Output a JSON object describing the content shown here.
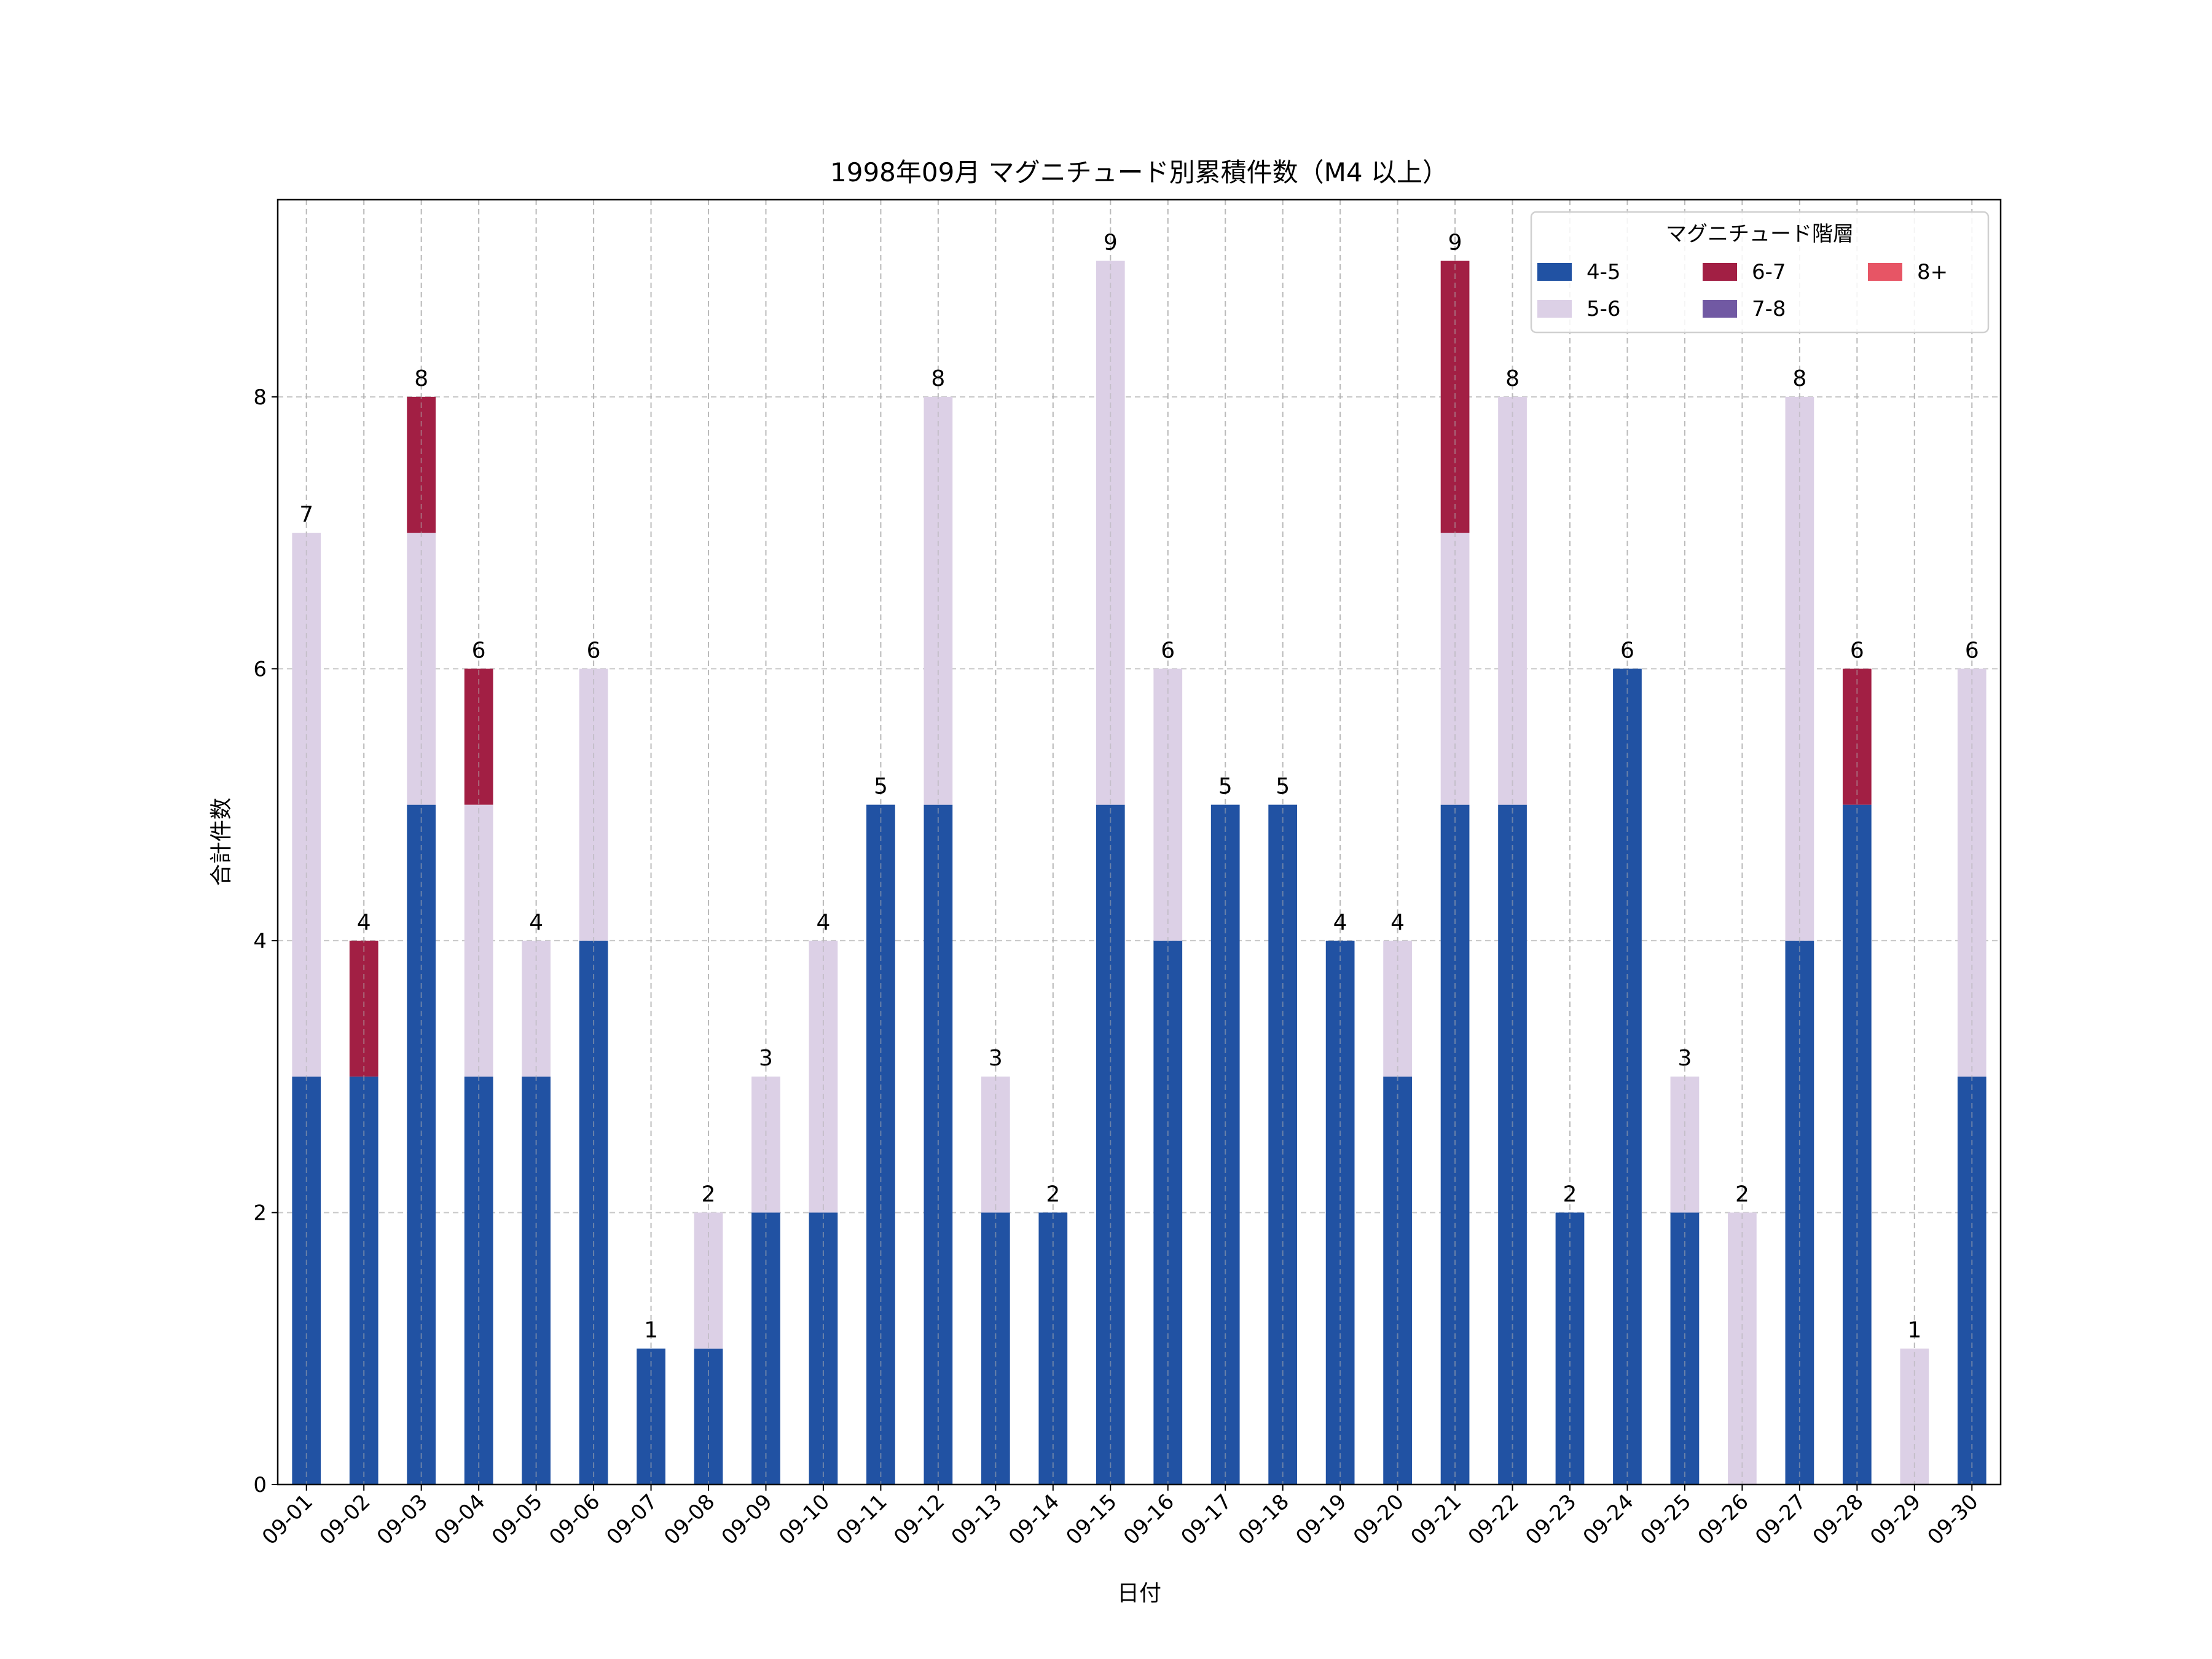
{
  "chart_data": {
    "type": "bar",
    "stacked": true,
    "title": "1998年09月 マグニチュード別累積件数（M4 以上）",
    "xlabel": "日付",
    "ylabel": "合計件数",
    "ylim": [
      0,
      9.45
    ],
    "yticks": [
      0,
      2,
      4,
      6,
      8
    ],
    "grid": true,
    "legend": {
      "title": "マグニチュード階層",
      "placement": "top-right",
      "columns": 3
    },
    "categories": [
      "09-01",
      "09-02",
      "09-03",
      "09-04",
      "09-05",
      "09-06",
      "09-07",
      "09-08",
      "09-09",
      "09-10",
      "09-11",
      "09-12",
      "09-13",
      "09-14",
      "09-15",
      "09-16",
      "09-17",
      "09-18",
      "09-19",
      "09-20",
      "09-21",
      "09-22",
      "09-23",
      "09-24",
      "09-25",
      "09-26",
      "09-27",
      "09-28",
      "09-29",
      "09-30"
    ],
    "series": [
      {
        "name": "4-5",
        "color": "#2152a3",
        "values": [
          3,
          3,
          5,
          3,
          3,
          4,
          1,
          1,
          2,
          2,
          5,
          5,
          2,
          2,
          5,
          4,
          5,
          5,
          4,
          3,
          5,
          5,
          2,
          6,
          2,
          0,
          4,
          5,
          0,
          3
        ]
      },
      {
        "name": "5-6",
        "color": "#dcd0e6",
        "values": [
          4,
          0,
          2,
          2,
          1,
          2,
          0,
          1,
          1,
          2,
          0,
          3,
          1,
          0,
          4,
          2,
          0,
          0,
          0,
          1,
          2,
          3,
          0,
          0,
          1,
          2,
          4,
          0,
          1,
          3
        ]
      },
      {
        "name": "6-7",
        "color": "#a21f44",
        "values": [
          0,
          1,
          1,
          1,
          0,
          0,
          0,
          0,
          0,
          0,
          0,
          0,
          0,
          0,
          0,
          0,
          0,
          0,
          0,
          0,
          2,
          0,
          0,
          0,
          0,
          0,
          0,
          1,
          0,
          0
        ]
      },
      {
        "name": "7-8",
        "color": "#7159a3",
        "values": [
          0,
          0,
          0,
          0,
          0,
          0,
          0,
          0,
          0,
          0,
          0,
          0,
          0,
          0,
          0,
          0,
          0,
          0,
          0,
          0,
          0,
          0,
          0,
          0,
          0,
          0,
          0,
          0,
          0,
          0
        ]
      },
      {
        "name": "8+",
        "color": "#e75565",
        "values": [
          0,
          0,
          0,
          0,
          0,
          0,
          0,
          0,
          0,
          0,
          0,
          0,
          0,
          0,
          0,
          0,
          0,
          0,
          0,
          0,
          0,
          0,
          0,
          0,
          0,
          0,
          0,
          0,
          0,
          0
        ]
      }
    ],
    "totals": [
      7,
      4,
      8,
      6,
      4,
      6,
      1,
      2,
      3,
      4,
      5,
      8,
      3,
      2,
      9,
      6,
      5,
      5,
      4,
      4,
      9,
      8,
      2,
      6,
      3,
      2,
      8,
      6,
      1,
      6
    ]
  }
}
